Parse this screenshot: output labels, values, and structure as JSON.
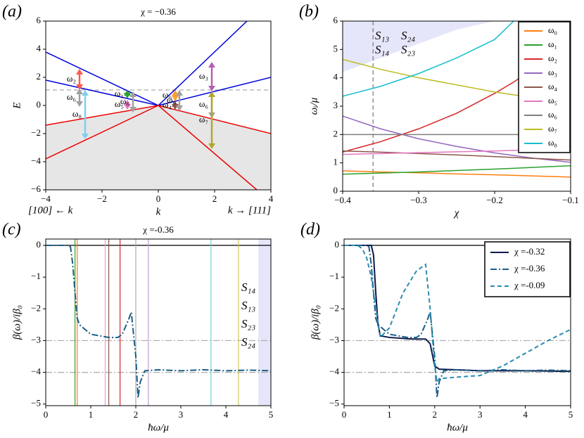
{
  "chart_data": [
    {
      "type": "line",
      "panel": "(a)",
      "title": "χ = −0.36",
      "xlabel": "k",
      "ylabel": "E",
      "xlim": [
        -4,
        4
      ],
      "ylim": [
        -6,
        6
      ],
      "xticks": [
        {
          "value": -4,
          "label": "−4"
        },
        {
          "value": -2,
          "label": "−2"
        },
        0,
        2,
        4
      ],
      "yticks": [
        {
          "value": -6,
          "label": "−6"
        },
        {
          "value": -4,
          "label": "−4"
        },
        {
          "value": -2,
          "label": "−2"
        },
        0,
        2,
        4,
        6
      ],
      "series": [
        {
          "color": "#0000dd",
          "x": [
            -4,
            0,
            3.15
          ],
          "values": [
            3.8,
            0,
            6
          ]
        },
        {
          "color": "#0000dd",
          "x": [
            -4,
            0,
            4
          ],
          "values": [
            1.8,
            0,
            2.0
          ]
        },
        {
          "color": "#ee0000",
          "x": [
            -4,
            0,
            3.5
          ],
          "values": [
            -3.8,
            0,
            -6
          ]
        },
        {
          "color": "#ee0000",
          "x": [
            -4,
            0,
            4
          ],
          "values": [
            -1.4,
            0,
            -2.0
          ],
          "fill": "#e6e6e6"
        }
      ],
      "hlines": [
        {
          "y": 1.1,
          "style": "dashed",
          "color": "#aaaaaa"
        }
      ],
      "arrows": [
        {
          "label": "ω₂",
          "k": -2.8,
          "from": 1.1,
          "to": 2.6,
          "color": "#ff5a4a"
        },
        {
          "label": "ω₆",
          "k": -2.8,
          "from": 1.2,
          "to": -0.1,
          "color": "#a0a0a0"
        },
        {
          "label": "ω₈",
          "k": -2.6,
          "from": 1.1,
          "to": -2.4,
          "color": "#7fcfef"
        },
        {
          "label": "ω₁",
          "k": -1.1,
          "from": 0.5,
          "to": 1.1,
          "color": "#2ca02c"
        },
        {
          "label": "ω₅",
          "k": -1.1,
          "from": 0.4,
          "to": -0.3,
          "color": "#e377c2"
        },
        {
          "label": "ω₆",
          "k": -0.9,
          "from": 1.0,
          "to": -0.5,
          "color": "#a0a0a0"
        },
        {
          "label": "ω₀",
          "k": 0.6,
          "from": 0.3,
          "to": 1.1,
          "color": "#ffa030"
        },
        {
          "label": "ω₄",
          "k": 0.6,
          "from": 0.3,
          "to": -0.3,
          "color": "#8c564b"
        },
        {
          "label": "ω₆",
          "k": 0.75,
          "from": 1.1,
          "to": -0.4,
          "color": "#a0a0a0"
        },
        {
          "label": "ω₃",
          "k": 1.9,
          "from": 1.0,
          "to": 3.1,
          "color": "#b35fb3"
        },
        {
          "label": "ω₆",
          "k": 1.9,
          "from": 1.0,
          "to": -0.9,
          "color": "#a0a0a0"
        },
        {
          "label": "ω₇",
          "k": 1.9,
          "from": 1.0,
          "to": -3.1,
          "color": "#b0a830"
        }
      ],
      "annotations": [
        "[100] ← k",
        "k → [111]"
      ]
    },
    {
      "type": "line",
      "panel": "(b)",
      "xlabel": "χ",
      "ylabel": "ωᵢ/μ",
      "xlim": [
        -0.4,
        -0.1
      ],
      "ylim": [
        0,
        6
      ],
      "xticks": [
        {
          "value": -0.4,
          "label": "−0.4"
        },
        {
          "value": -0.3,
          "label": "−0.3"
        },
        {
          "value": -0.2,
          "label": "−0.2"
        },
        {
          "value": -0.1,
          "label": "−0.1"
        }
      ],
      "yticks": [
        0,
        1,
        2,
        3,
        4,
        5,
        6
      ],
      "legend": "upper right",
      "x": [
        -0.4,
        -0.35,
        -0.3,
        -0.25,
        -0.2,
        -0.175,
        -0.15,
        -0.1
      ],
      "shade": {
        "color": "#e6e6fa",
        "values": [
          4.2,
          4.7,
          5.2,
          5.7,
          6.0,
          null,
          null,
          null
        ]
      },
      "series": [
        {
          "name": "ω₀",
          "color": "#ff7f0e",
          "values": [
            0.72,
            0.68,
            0.65,
            0.61,
            0.58,
            0.56,
            0.54,
            0.5
          ]
        },
        {
          "name": "ω₁",
          "color": "#2ca02c",
          "values": [
            0.6,
            0.64,
            0.68,
            0.73,
            0.78,
            0.81,
            0.84,
            0.9
          ]
        },
        {
          "name": "ω₂",
          "color": "#d62728",
          "values": [
            1.38,
            1.75,
            2.2,
            2.75,
            3.45,
            3.85,
            4.3,
            5.3
          ]
        },
        {
          "name": "ω₃",
          "color": "#9467bd",
          "values": [
            2.65,
            2.2,
            1.85,
            1.58,
            1.35,
            1.26,
            1.17,
            1.02
          ]
        },
        {
          "name": "ω₄",
          "color": "#8c564b",
          "values": [
            1.42,
            1.38,
            1.33,
            1.28,
            1.22,
            1.19,
            1.16,
            1.1
          ]
        },
        {
          "name": "ω₅",
          "color": "#e377c2",
          "values": [
            1.3,
            1.33,
            1.36,
            1.39,
            1.42,
            1.44,
            1.46,
            1.5
          ]
        },
        {
          "name": "ω₆",
          "color": "#7f7f7f",
          "values": [
            2,
            2,
            2,
            2,
            2,
            2,
            2,
            2
          ]
        },
        {
          "name": "ω₇",
          "color": "#bcbd22",
          "values": [
            4.65,
            4.3,
            4.0,
            3.75,
            3.5,
            3.4,
            3.3,
            3.1
          ]
        },
        {
          "name": "ω₈",
          "color": "#17becf",
          "values": [
            3.35,
            3.7,
            4.15,
            4.7,
            5.35,
            6.0,
            null,
            null
          ]
        }
      ],
      "vlines": [
        {
          "x": -0.36,
          "style": "dashed",
          "color": "#777777"
        }
      ],
      "annotations": [
        "S₁₃",
        "S₂₄",
        "S₁₄",
        "S₂₃"
      ]
    },
    {
      "type": "line",
      "panel": "(c)",
      "title": "χ =-0.36",
      "xlabel": "ħω/μ",
      "ylabel": "β(ω)/iβ₀",
      "xlim": [
        0,
        5
      ],
      "ylim": [
        -5.05,
        0.2
      ],
      "xticks": [
        0,
        1,
        2,
        3,
        4,
        5
      ],
      "yticks": [
        0,
        {
          "value": -1,
          "label": "−1"
        },
        {
          "value": -2,
          "label": "−2"
        },
        {
          "value": -3,
          "label": "−3"
        },
        {
          "value": -4,
          "label": "−4"
        },
        {
          "value": -5,
          "label": "−5"
        }
      ],
      "spans": [
        {
          "from": 4.72,
          "to": 5,
          "color": "#e6e6fa"
        }
      ],
      "hlines": [
        {
          "y": 0,
          "style": "solid",
          "color": "#000000"
        },
        {
          "y": -3,
          "style": "dashdot",
          "color": "#aaaaaa"
        },
        {
          "y": -4,
          "style": "dashdot",
          "color": "#aaaaaa"
        }
      ],
      "vlines": [
        {
          "x": 0.65,
          "style": "solid",
          "color": "#2ca02c"
        },
        {
          "x": 0.7,
          "style": "solid",
          "color": "#ff7f0e"
        },
        {
          "x": 1.32,
          "style": "solid",
          "color": "#e8a0d0"
        },
        {
          "x": 1.4,
          "style": "solid",
          "color": "#8c564b"
        },
        {
          "x": 1.65,
          "style": "solid",
          "color": "#d62728"
        },
        {
          "x": 2.0,
          "style": "solid",
          "color": "#aaaaaa"
        },
        {
          "x": 2.28,
          "style": "solid",
          "color": "#c0a0d0"
        },
        {
          "x": 3.67,
          "style": "solid",
          "color": "#70d0d8"
        },
        {
          "x": 4.28,
          "style": "solid",
          "color": "#c8c860"
        }
      ],
      "series": [
        {
          "color": "#1a5e86",
          "style": "dashdot",
          "x": [
            0,
            0.5,
            0.55,
            0.6,
            0.65,
            0.7,
            0.75,
            1.0,
            1.2,
            1.4,
            1.6,
            1.7,
            1.85,
            1.9,
            2.0,
            2.05,
            2.1,
            2.2,
            2.5,
            3.0,
            3.5,
            4.0,
            4.5,
            5.0
          ],
          "values": [
            0,
            0,
            -0.05,
            -0.6,
            -1.5,
            -2.3,
            -2.5,
            -2.8,
            -2.85,
            -2.9,
            -2.9,
            -2.8,
            -2.3,
            -2.1,
            -3.5,
            -4.8,
            -4.3,
            -3.95,
            -3.92,
            -3.95,
            -3.92,
            -3.95,
            -3.93,
            -3.95
          ]
        }
      ],
      "annotations": [
        "S₁₄",
        "S₁₃",
        "S₂₃",
        "S₂₄"
      ]
    },
    {
      "type": "line",
      "panel": "(d)",
      "xlabel": "ħω/μ",
      "ylabel": "β(ω)/iβ₀",
      "xlim": [
        0,
        5
      ],
      "ylim": [
        -5.05,
        0.2
      ],
      "xticks": [
        0,
        1,
        2,
        3,
        4,
        5
      ],
      "yticks": [
        0,
        {
          "value": -1,
          "label": "−1"
        },
        {
          "value": -2,
          "label": "−2"
        },
        {
          "value": -3,
          "label": "−3"
        },
        {
          "value": -4,
          "label": "−4"
        },
        {
          "value": -5,
          "label": "−5"
        }
      ],
      "legend": "upper right",
      "hlines": [
        {
          "y": 0,
          "style": "solid",
          "color": "#000000"
        },
        {
          "y": -3,
          "style": "dashdot",
          "color": "#aaaaaa"
        },
        {
          "y": -4,
          "style": "dashdot",
          "color": "#aaaaaa"
        }
      ],
      "series": [
        {
          "name": "χ =-0.32",
          "color": "#0b1a4a",
          "style": "solid",
          "x": [
            0,
            0.6,
            0.65,
            0.7,
            0.75,
            0.8,
            1.0,
            1.5,
            1.8,
            1.9,
            2.0,
            2.1,
            2.5,
            3,
            4,
            5
          ],
          "values": [
            0,
            0,
            -0.3,
            -1.5,
            -2.5,
            -2.85,
            -2.9,
            -2.95,
            -2.95,
            -3.1,
            -3.8,
            -3.9,
            -3.92,
            -3.95,
            -3.95,
            -3.97
          ]
        },
        {
          "name": "χ =-0.36",
          "color": "#1a5e86",
          "style": "dashdot",
          "x": [
            0,
            0.5,
            0.55,
            0.6,
            0.65,
            0.7,
            0.75,
            1.0,
            1.2,
            1.4,
            1.6,
            1.7,
            1.85,
            1.9,
            2.0,
            2.05,
            2.1,
            2.2,
            2.5,
            3.0,
            3.5,
            4.0,
            4.5,
            5.0
          ],
          "values": [
            0,
            0,
            -0.05,
            -0.6,
            -1.5,
            -2.3,
            -2.5,
            -2.8,
            -2.85,
            -2.9,
            -2.9,
            -2.8,
            -2.3,
            -2.1,
            -3.5,
            -4.8,
            -4.3,
            -3.95,
            -3.92,
            -3.95,
            -3.92,
            -3.95,
            -3.93,
            -3.95
          ]
        },
        {
          "name": "χ =-0.09",
          "color": "#2a8bb0",
          "style": "dashed",
          "x": [
            0,
            0.3,
            0.4,
            0.5,
            0.6,
            0.8,
            1.0,
            1.3,
            1.6,
            1.8,
            1.9,
            2.0,
            2.05,
            2.1,
            2.5,
            3.0,
            3.5,
            4,
            4.5,
            5
          ],
          "values": [
            0,
            0,
            -0.1,
            -0.4,
            -1.0,
            -2.9,
            -2.6,
            -1.5,
            -0.8,
            -0.6,
            -2.0,
            -3.8,
            -4.3,
            -4.2,
            -4.15,
            -4.1,
            -3.8,
            -3.4,
            -3.0,
            -2.65
          ]
        }
      ]
    }
  ]
}
